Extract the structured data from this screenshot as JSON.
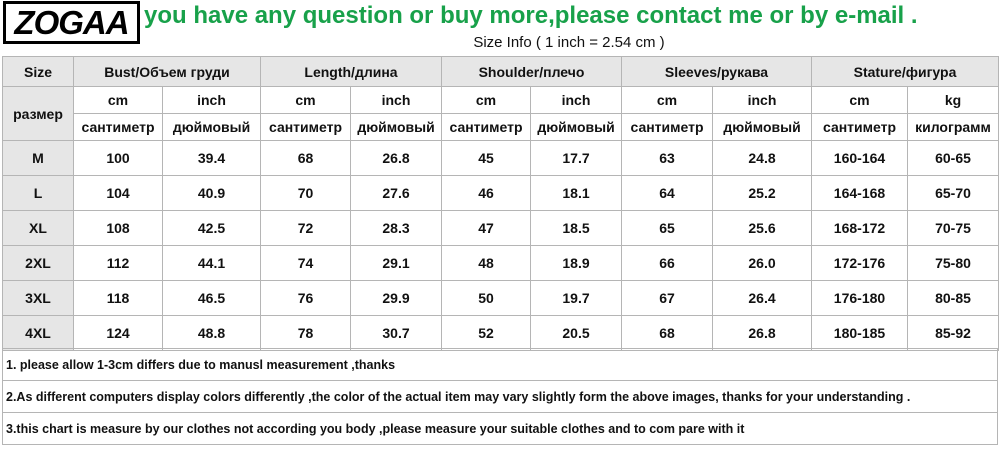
{
  "logo": "ZOGAA",
  "contact_text": "you have any question or buy more,please contact me or by e-mail .",
  "size_info": "Size Info ( 1 inch = 2.54 cm )",
  "header": {
    "size": "Size",
    "size_ru": "размер",
    "groups": [
      "Bust/Объем груди",
      "Length/длина",
      "Shoulder/плечо",
      "Sleeves/рукава",
      "Stature/фигура"
    ],
    "units": [
      "cm",
      "inch",
      "cm",
      "inch",
      "cm",
      "inch",
      "cm",
      "inch",
      "cm",
      "kg"
    ],
    "units_ru": [
      "сантиметр",
      "дюймовый",
      "сантиметр",
      "дюймовый",
      "сантиметр",
      "дюймовый",
      "сантиметр",
      "дюймовый",
      "сантиметр",
      "килограмм"
    ]
  },
  "rows": [
    {
      "size": "M",
      "values": [
        "100",
        "39.4",
        "68",
        "26.8",
        "45",
        "17.7",
        "63",
        "24.8",
        "160-164",
        "60-65"
      ]
    },
    {
      "size": "L",
      "values": [
        "104",
        "40.9",
        "70",
        "27.6",
        "46",
        "18.1",
        "64",
        "25.2",
        "164-168",
        "65-70"
      ]
    },
    {
      "size": "XL",
      "values": [
        "108",
        "42.5",
        "72",
        "28.3",
        "47",
        "18.5",
        "65",
        "25.6",
        "168-172",
        "70-75"
      ]
    },
    {
      "size": "2XL",
      "values": [
        "112",
        "44.1",
        "74",
        "29.1",
        "48",
        "18.9",
        "66",
        "26.0",
        "172-176",
        "75-80"
      ]
    },
    {
      "size": "3XL",
      "values": [
        "118",
        "46.5",
        "76",
        "29.9",
        "50",
        "19.7",
        "67",
        "26.4",
        "176-180",
        "80-85"
      ]
    },
    {
      "size": "4XL",
      "values": [
        "124",
        "48.8",
        "78",
        "30.7",
        "52",
        "20.5",
        "68",
        "26.8",
        "180-185",
        "85-92"
      ]
    }
  ],
  "notes": [
    "1. please allow 1-3cm differs due to manusl measurement ,thanks",
    "2.As different computers display colors differently ,the color of the actual item may vary slightly form the above images, thanks for your understanding .",
    "3.this chart is measure by our clothes not according you body ,please measure your suitable clothes and to com pare with it"
  ]
}
